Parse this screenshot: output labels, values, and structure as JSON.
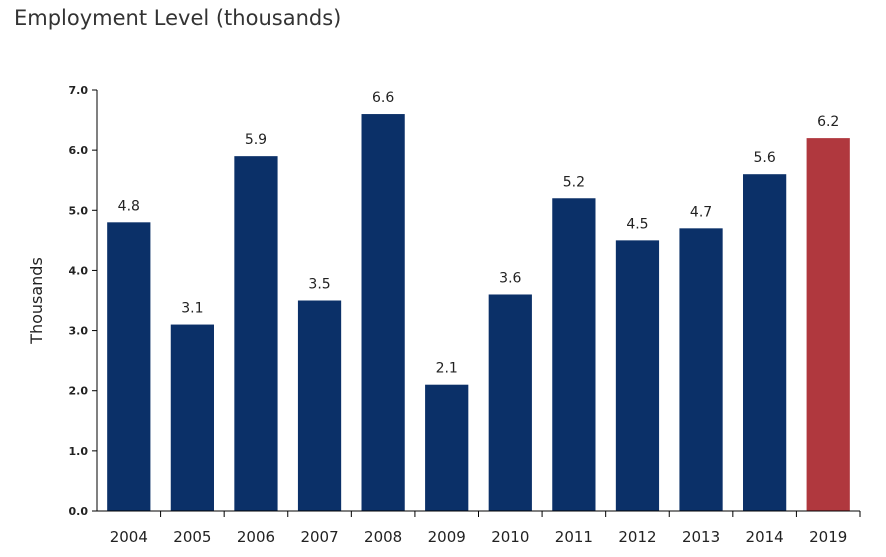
{
  "chart_data": {
    "type": "bar",
    "title": "Employment Level (thousands)",
    "ylabel": "Thousands",
    "xlabel": "",
    "categories": [
      "2004",
      "2005",
      "2006",
      "2007",
      "2008",
      "2009",
      "2010",
      "2011",
      "2012",
      "2013",
      "2014",
      "2019"
    ],
    "values": [
      4.8,
      3.1,
      5.9,
      3.5,
      6.6,
      2.1,
      3.6,
      5.2,
      4.5,
      4.7,
      5.6,
      6.2
    ],
    "data_labels": [
      "4.8",
      "3.1",
      "5.9",
      "3.5",
      "6.6",
      "2.1",
      "3.6",
      "5.2",
      "4.5",
      "4.7",
      "5.6",
      "6.2"
    ],
    "ylim": [
      0,
      7
    ],
    "yticks": [
      "0.0",
      "1.0",
      "2.0",
      "3.0",
      "4.0",
      "5.0",
      "6.0",
      "7.0"
    ],
    "grid": false,
    "colors": {
      "bar": "#0b3068",
      "highlight_bar": "#b0383e",
      "highlight_category": "2019",
      "axis": "#000000"
    }
  }
}
